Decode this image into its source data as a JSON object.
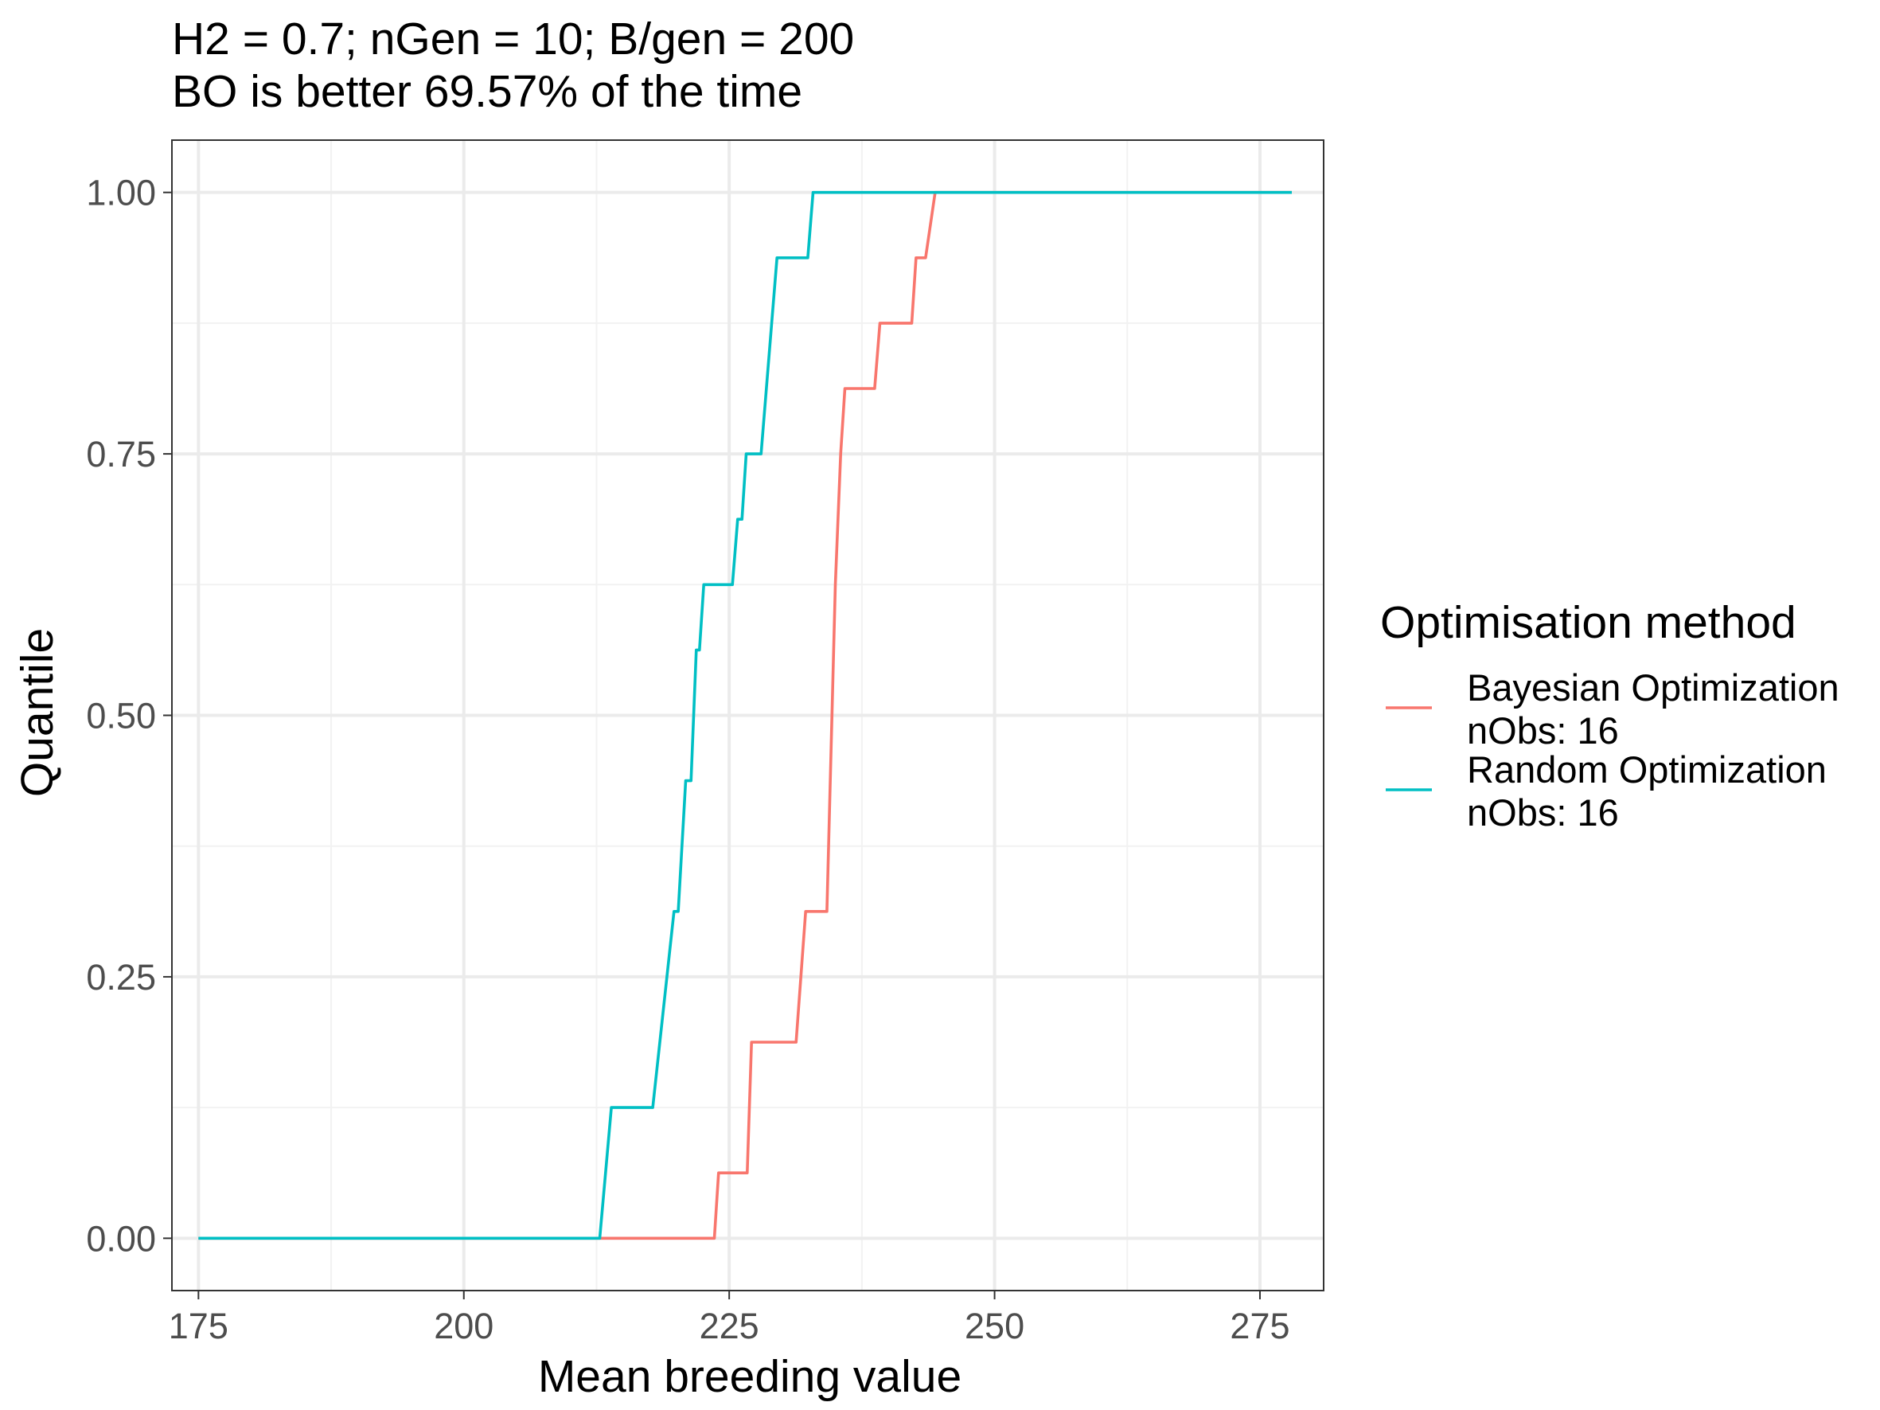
{
  "chart_data": {
    "type": "line",
    "title": "H2 = 0.7; nGen = 10; B/gen = 200",
    "subtitle": "BO is better 69.57% of the time",
    "xlabel": "Mean breeding value",
    "ylabel": "Quantile",
    "xlim": [
      172.5,
      281
    ],
    "ylim": [
      -0.05,
      1.05
    ],
    "x_ticks": [
      175,
      200,
      225,
      250,
      275
    ],
    "x_tick_labels": [
      "175",
      "200",
      "225",
      "250",
      "275"
    ],
    "y_ticks": [
      0,
      0.25,
      0.5,
      0.75,
      1
    ],
    "y_tick_labels": [
      "0.00",
      "0.25",
      "0.50",
      "0.75",
      "1.00"
    ],
    "grid": true,
    "legend": {
      "title": "Optimisation method",
      "position": "right"
    },
    "series": [
      {
        "name": "Bayesian Optimization",
        "legend_lines": [
          "Bayesian Optimization",
          "nObs: 16"
        ],
        "color": "#F8766D",
        "x": [
          175,
          212.8,
          223.6,
          224.0,
          226.7,
          227.1,
          231.3,
          232.2,
          234.2,
          235.0,
          235.5,
          235.9,
          238.7,
          239.2,
          242.2,
          242.6,
          243.5,
          244.4,
          278.0
        ],
        "y": [
          0,
          0,
          0,
          0.0625,
          0.0625,
          0.1875,
          0.1875,
          0.3125,
          0.3125,
          0.625,
          0.75,
          0.8125,
          0.8125,
          0.875,
          0.875,
          0.9375,
          0.9375,
          1.0,
          1.0
        ]
      },
      {
        "name": "Random Optimization",
        "legend_lines": [
          "Random Optimization",
          "nObs: 16"
        ],
        "color": "#00BFC4",
        "x": [
          175,
          212.8,
          213.9,
          217.8,
          219.8,
          220.2,
          220.9,
          221.4,
          221.9,
          222.2,
          222.6,
          225.3,
          225.8,
          226.2,
          226.6,
          227.1,
          228.0,
          229.5,
          230.1,
          232.4,
          232.9,
          278.0
        ],
        "y": [
          0,
          0,
          0.125,
          0.125,
          0.3125,
          0.3125,
          0.4375,
          0.4375,
          0.5625,
          0.5625,
          0.625,
          0.625,
          0.6875,
          0.6875,
          0.75,
          0.75,
          0.75,
          0.9375,
          0.9375,
          0.9375,
          1.0,
          1.0
        ]
      }
    ]
  }
}
